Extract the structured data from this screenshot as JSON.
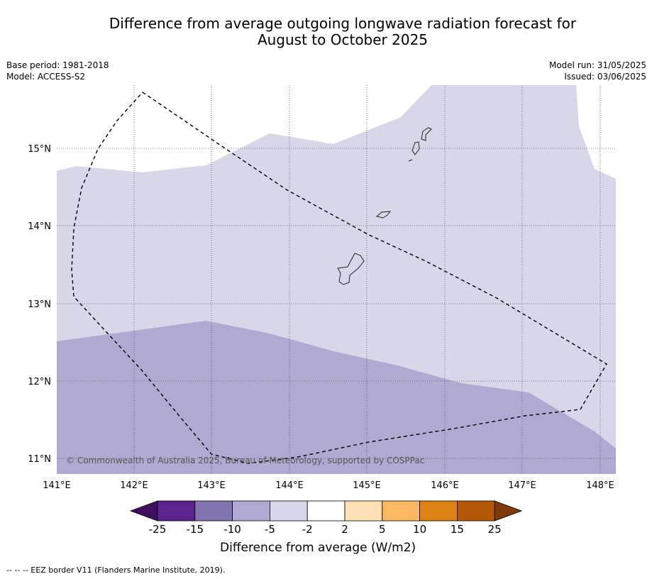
{
  "title": {
    "line1": "Difference from average outgoing longwave radiation forecast for",
    "line2": "August to October 2025"
  },
  "meta": {
    "base_period": "Base period: 1981-2018",
    "model": "Model: ACCESS-S2",
    "model_run": "Model run: 31/05/2025",
    "issued": "Issued: 03/06/2025"
  },
  "map": {
    "lon_range": [
      141.0,
      148.2
    ],
    "lat_range": [
      10.8,
      15.8
    ],
    "lon_ticks": [
      "141°E",
      "142°E",
      "143°E",
      "144°E",
      "145°E",
      "146°E",
      "147°E",
      "148°E"
    ],
    "lat_ticks": [
      "15°N",
      "14°N",
      "13°N",
      "12°N",
      "11°N"
    ],
    "copyright": "© Commonwealth of Australia 2025, Bureau of Meteorology, supported by COSPPac",
    "category_colors": {
      "-10 to -5": "#b0a9d1",
      "-5 to -2": "#d7d7e9",
      "-2 to 2": "#ffffff"
    }
  },
  "colorbar": {
    "label": "Difference from average (W/m2)",
    "ticks": [
      "-25",
      "-15",
      "-10",
      "-5",
      "-2",
      "2",
      "5",
      "10",
      "15",
      "25"
    ],
    "colors": [
      "#3d0f5c",
      "#5a248c",
      "#8173b0",
      "#b0a9d1",
      "#d7d7e9",
      "#ffffff",
      "#fde0b4",
      "#fbb761",
      "#e08316",
      "#b35807",
      "#7f3b07"
    ]
  },
  "footer": "--  --  -- EEZ border V11 (Flanders Marine Institute, 2019)."
}
